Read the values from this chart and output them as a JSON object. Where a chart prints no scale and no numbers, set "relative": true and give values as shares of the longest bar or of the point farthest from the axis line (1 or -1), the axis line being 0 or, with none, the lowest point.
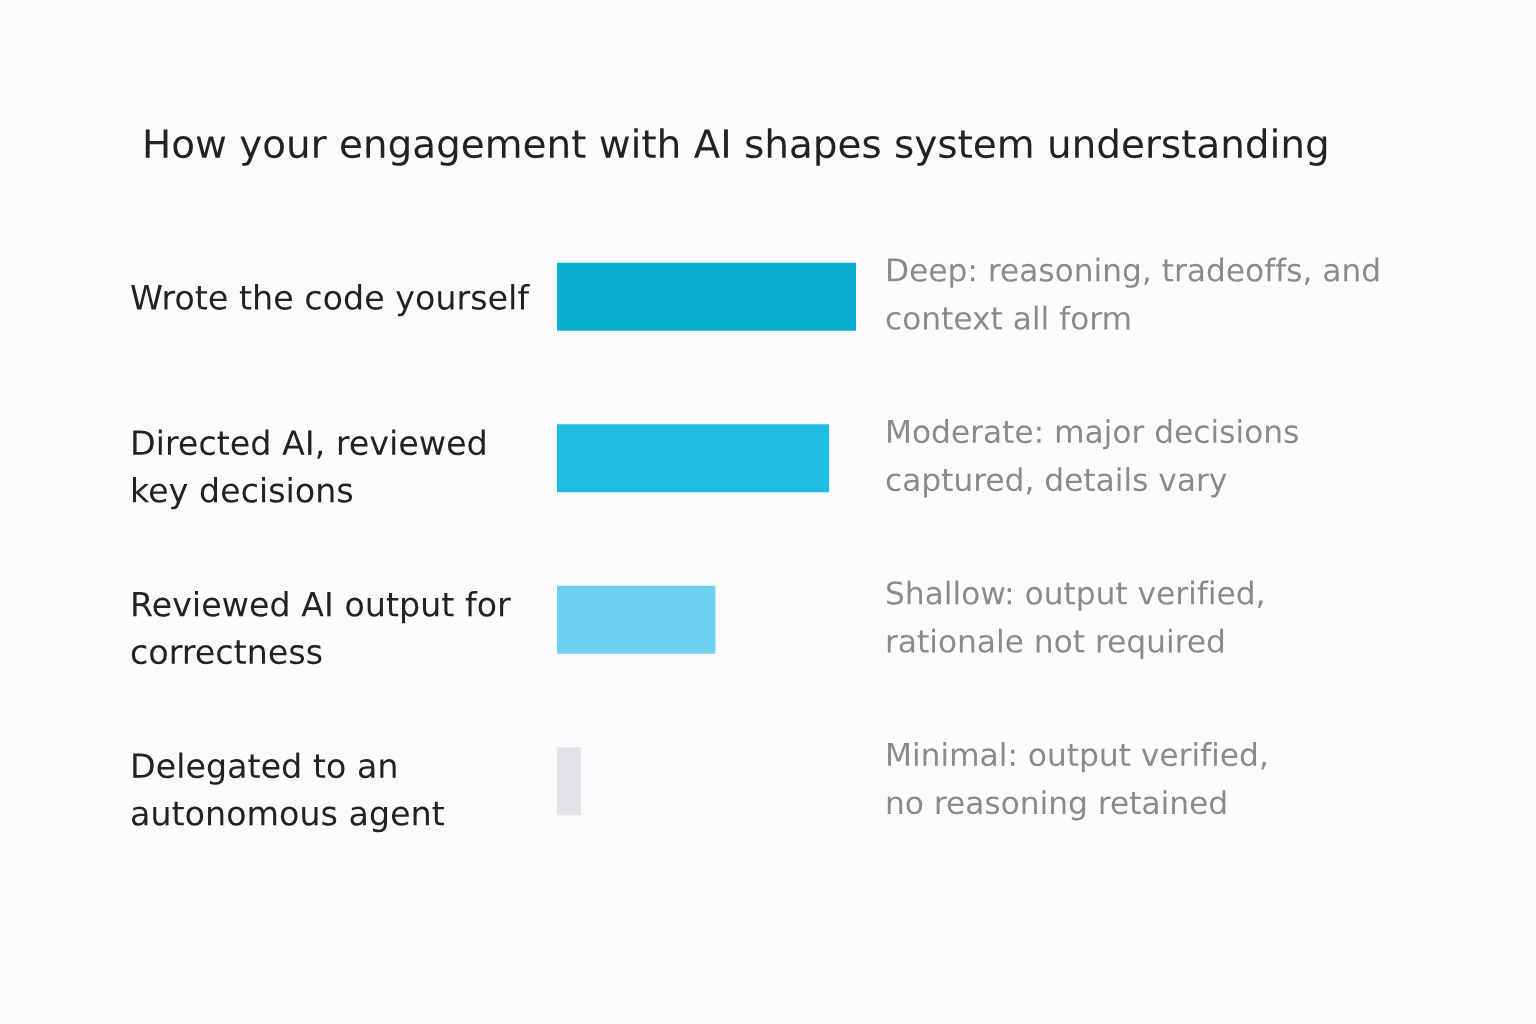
{
  "chart_data": {
    "type": "bar",
    "orientation": "horizontal",
    "relative": true,
    "tick_labels": "y",
    "title": "How your engagement with AI shapes system understanding",
    "categories": [
      "Wrote the code yourself",
      "Directed AI, reviewed\nkey decisions",
      "Reviewed AI output for\ncorrectness",
      "Delegated to an\nautonomous agent"
    ],
    "values": [
      1,
      0.91,
      0.53,
      0.08
    ],
    "colors": [
      "#0aaed3",
      "#1fbde2",
      "#6cd0ee",
      "#e2e4e8"
    ],
    "annotations": [
      "Deep: reasoning, tradeoffs, and\ncontext all form",
      "Moderate: major decisions\ncaptured, details vary",
      "Shallow: output verified,\nrationale not required",
      "Minimal: output verified,\nno reasoning retained"
    ]
  }
}
